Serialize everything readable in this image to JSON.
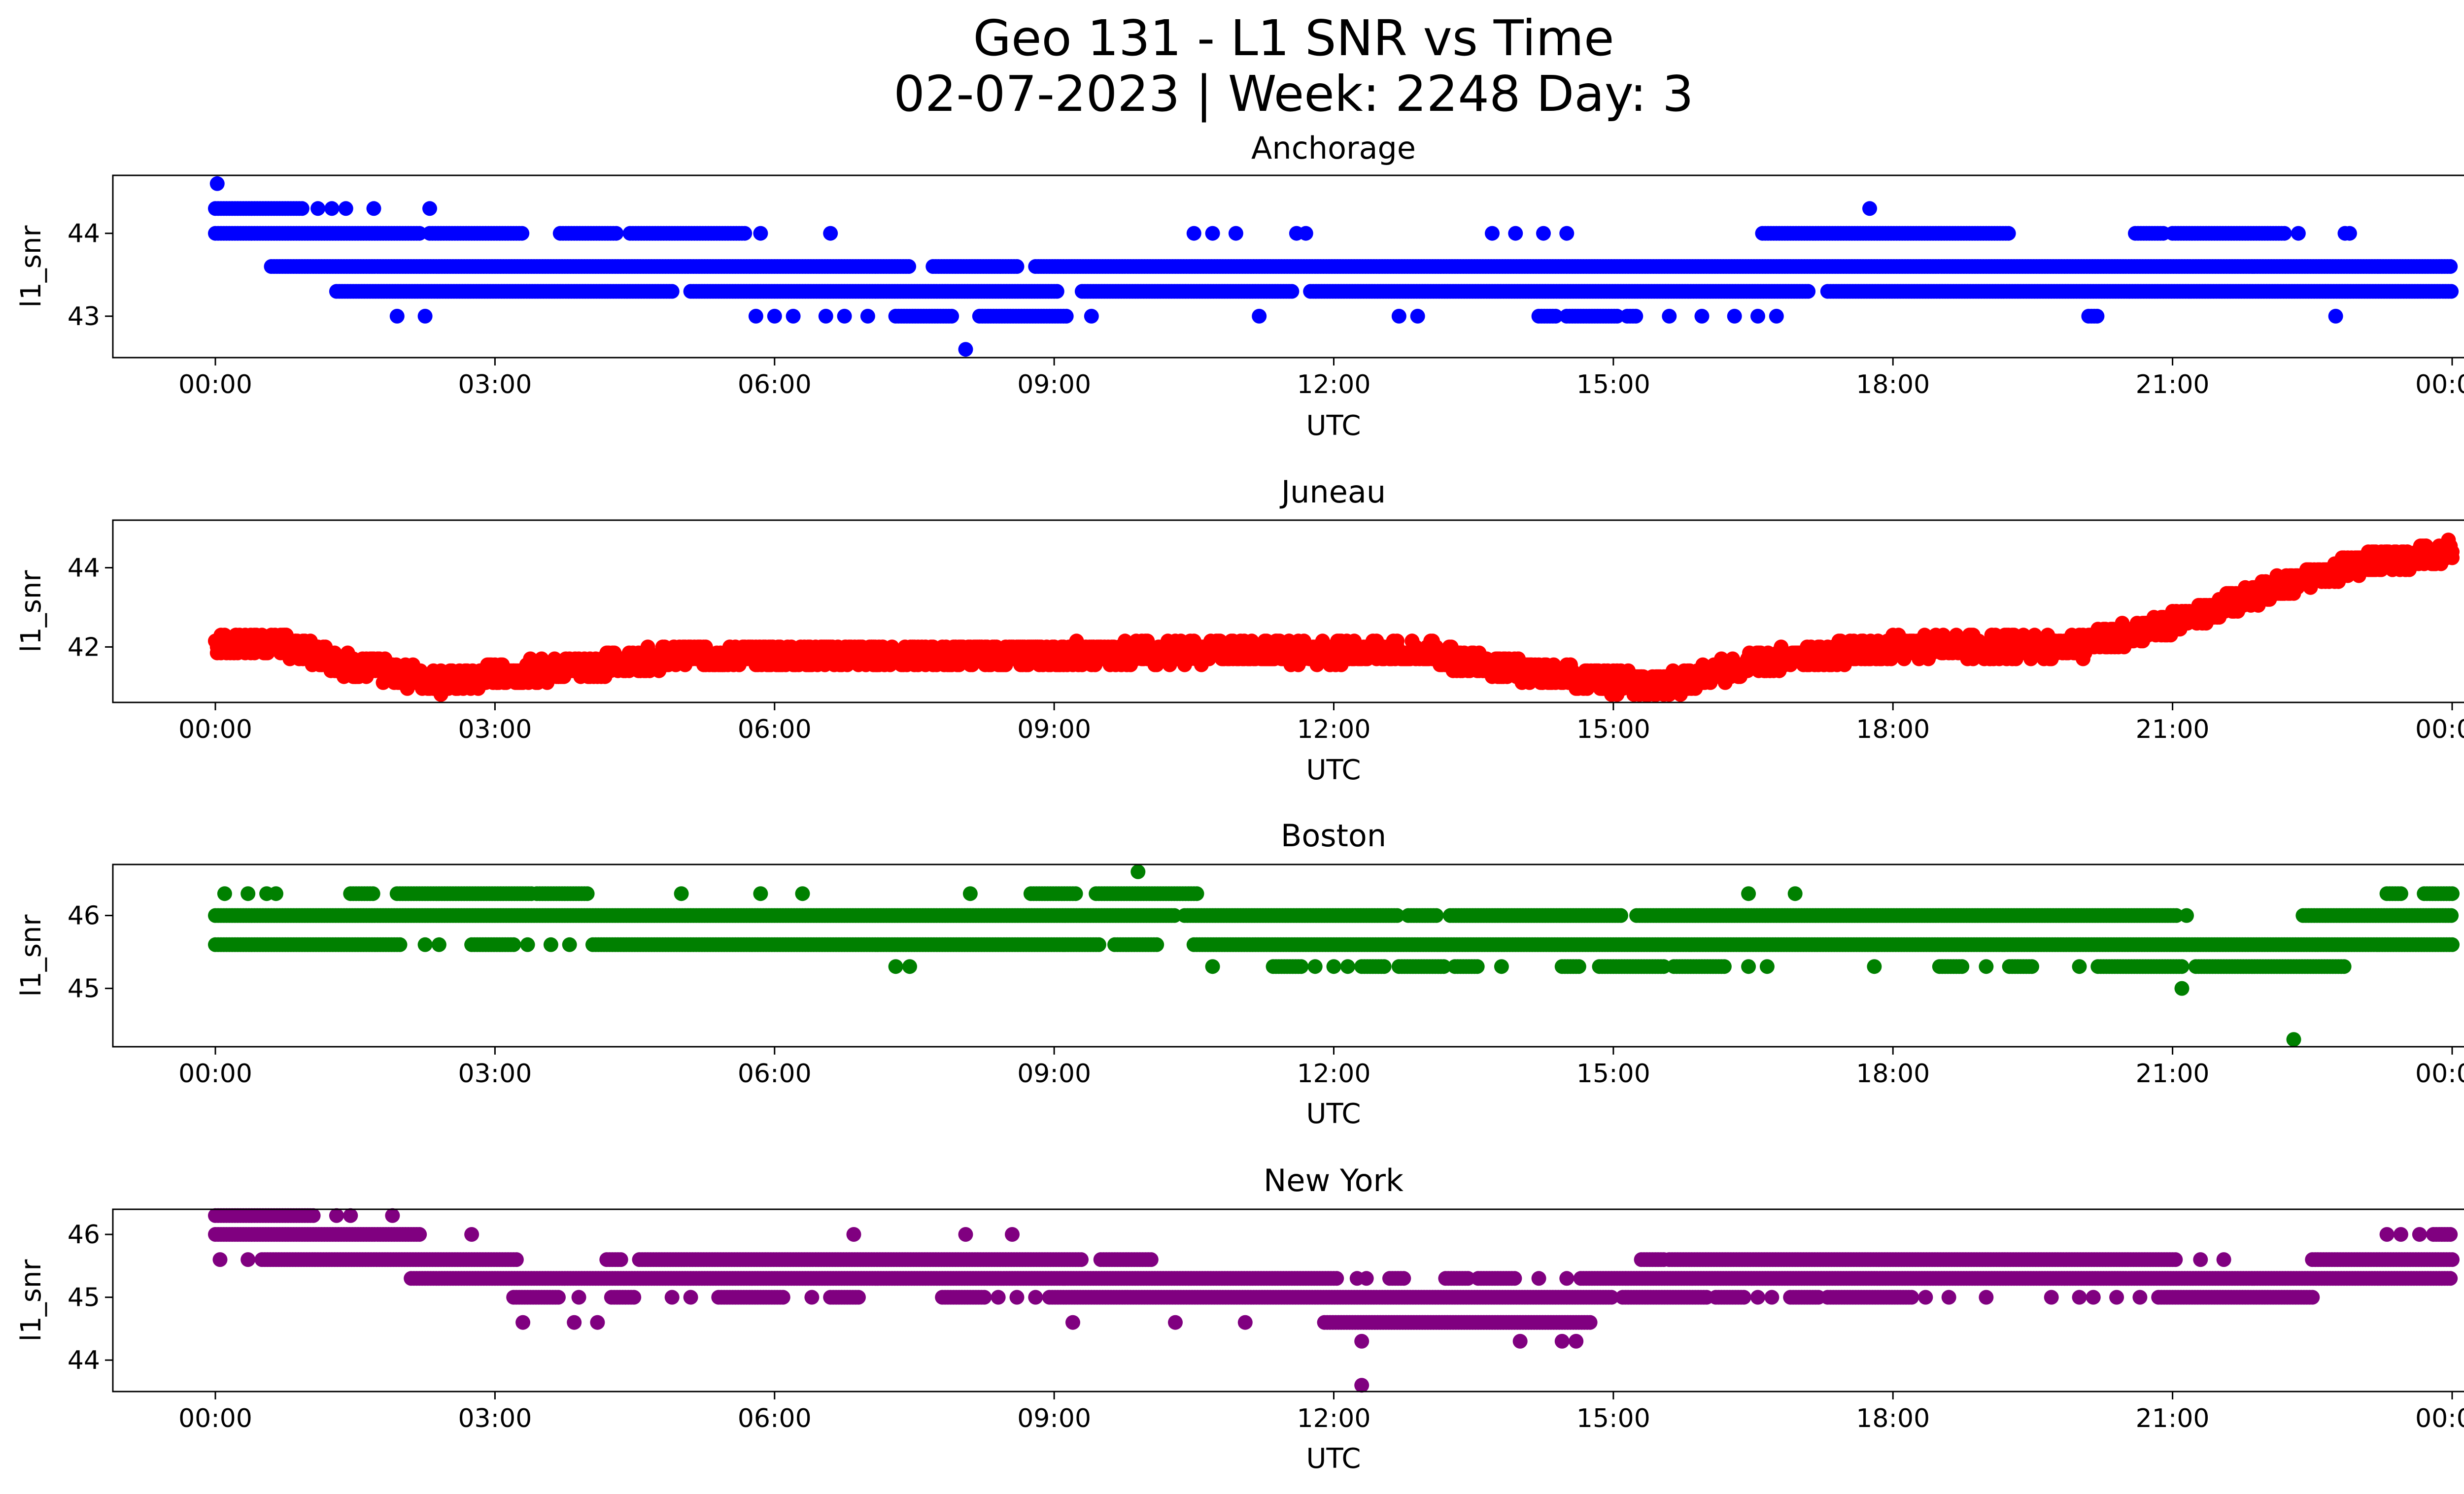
{
  "figure": {
    "title_line1": "Geo 131 - L1 SNR vs Time",
    "title_line2": "02-07-2023 | Week: 2248 Day: 3"
  },
  "chart_data": [
    {
      "type": "scatter",
      "title": "Anchorage",
      "xlabel": "UTC",
      "ylabel": "l1_snr",
      "color": "#0000ff",
      "xlim": [
        -1.1,
        25.1
      ],
      "ylim": [
        42.5,
        44.7
      ],
      "xticks": [
        "00:00",
        "03:00",
        "06:00",
        "09:00",
        "12:00",
        "15:00",
        "18:00",
        "21:00",
        "00:00"
      ],
      "yticks": [
        43,
        44
      ],
      "series": [
        {
          "values": [
            {
              "y": 44.6,
              "x": [
                0.02
              ]
            },
            {
              "y": 44.3,
              "x": [
                [
                  0,
                  0.95
                ],
                1.1,
                1.25,
                1.4,
                1.7,
                2.3,
                17.75
              ]
            },
            {
              "y": 44.0,
              "x": [
                [
                  0,
                  2.2
                ],
                [
                  2.3,
                  3.3
                ],
                [
                  3.7,
                  4.3
                ],
                [
                  4.45,
                  5.7
                ],
                5.85,
                6.6,
                10.5,
                10.7,
                10.95,
                11.6,
                11.7,
                13.7,
                13.95,
                14.25,
                14.5,
                [
                  16.6,
                  19.25
                ],
                [
                  20.6,
                  20.9
                ],
                [
                  21,
                  22.2
                ],
                22.35,
                22.85,
                22.9
              ]
            },
            {
              "y": 43.6,
              "x": [
                [
                  0.6,
                  7.45
                ],
                [
                  7.7,
                  8.6
                ],
                [
                  8.8,
                  24
                ]
              ]
            },
            {
              "y": 43.3,
              "x": [
                [
                  1.3,
                  4.9
                ],
                [
                  5.1,
                  9.05
                ],
                [
                  9.3,
                  11.55
                ],
                [
                  11.75,
                  17.1
                ],
                [
                  17.3,
                  24
                ]
              ]
            },
            {
              "y": 43.0,
              "x": [
                1.95,
                2.25,
                5.8,
                6.0,
                6.2,
                6.55,
                6.75,
                7.0,
                [
                  7.3,
                  7.9
                ],
                [
                  8.2,
                  9.15
                ],
                9.4,
                11.2,
                12.7,
                12.9,
                [
                  14.2,
                  14.4
                ],
                [
                  14.5,
                  15.05
                ],
                [
                  15.15,
                  15.25
                ],
                15.6,
                15.95,
                16.3,
                16.55,
                16.75,
                [
                  20.1,
                  20.2
                ],
                22.75
              ]
            },
            {
              "y": 42.6,
              "x": [
                8.05
              ]
            }
          ]
        }
      ]
    },
    {
      "type": "scatter",
      "title": "Juneau",
      "xlabel": "UTC",
      "ylabel": "l1_snr",
      "color": "#ff0000",
      "xlim": [
        -1.1,
        25.1
      ],
      "ylim": [
        40.6,
        45.2
      ],
      "xticks": [
        "00:00",
        "03:00",
        "06:00",
        "09:00",
        "12:00",
        "15:00",
        "18:00",
        "21:00",
        "00:00"
      ],
      "yticks": [
        42,
        44
      ],
      "trend": [
        [
          0,
          42.1
        ],
        [
          0.7,
          42.1
        ],
        [
          1.5,
          41.5
        ],
        [
          2.5,
          41.1
        ],
        [
          3,
          41.3
        ],
        [
          4,
          41.5
        ],
        [
          5,
          41.8
        ],
        [
          6,
          41.8
        ],
        [
          9,
          41.8
        ],
        [
          11,
          41.9
        ],
        [
          13,
          41.85
        ],
        [
          14,
          41.4
        ],
        [
          15.5,
          41
        ],
        [
          16.5,
          41.6
        ],
        [
          18,
          42.0
        ],
        [
          20,
          42.0
        ],
        [
          21,
          42.6
        ],
        [
          22,
          43.4
        ],
        [
          23,
          44.1
        ],
        [
          24,
          44.4
        ]
      ],
      "series": [
        {
          "values": []
        }
      ]
    },
    {
      "type": "scatter",
      "title": "Boston",
      "xlabel": "UTC",
      "ylabel": "l1_snr",
      "color": "#008000",
      "xlim": [
        -1.1,
        25.1
      ],
      "ylim": [
        44.2,
        46.7
      ],
      "xticks": [
        "00:00",
        "03:00",
        "06:00",
        "09:00",
        "12:00",
        "15:00",
        "18:00",
        "21:00",
        "00:00"
      ],
      "yticks": [
        45,
        46
      ],
      "series": [
        {
          "values": [
            {
              "y": 46.6,
              "x": [
                9.9
              ]
            },
            {
              "y": 46.3,
              "x": [
                0.1,
                0.35,
                0.55,
                0.65,
                [
                  1.45,
                  1.7
                ],
                [
                  1.95,
                  3.4
                ],
                [
                  3.45,
                  4.0
                ],
                5.0,
                5.85,
                6.3,
                8.1,
                [
                  8.75,
                  9.25
                ],
                [
                  9.45,
                  10.55
                ],
                16.45,
                16.95,
                [
                  23.3,
                  23.45
                ],
                [
                  23.7,
                  24
                ]
              ]
            },
            {
              "y": 46.0,
              "x": [
                [
                  0,
                  10.3
                ],
                [
                  10.4,
                  12.7
                ],
                [
                  12.8,
                  13.1
                ],
                [
                  13.25,
                  15.1
                ],
                [
                  15.25,
                  21.05
                ],
                21.15,
                [
                  22.4,
                  24
                ]
              ]
            },
            {
              "y": 45.6,
              "x": [
                [
                  0,
                  2.0
                ],
                2.25,
                2.4,
                [
                  2.75,
                  3.2
                ],
                3.35,
                3.6,
                3.8,
                [
                  4.05,
                  9.5
                ],
                [
                  9.65,
                  10.1
                ],
                [
                  10.5,
                  24
                ]
              ]
            },
            {
              "y": 45.3,
              "x": [
                7.3,
                7.45,
                10.7,
                [
                  11.35,
                  11.65
                ],
                11.8,
                12.0,
                12.15,
                [
                  12.3,
                  12.55
                ],
                [
                  12.7,
                  13.2
                ],
                [
                  13.3,
                  13.55
                ],
                13.8,
                [
                  14.45,
                  14.65
                ],
                [
                  14.85,
                  15.55
                ],
                [
                  15.65,
                  16.2
                ],
                16.45,
                16.65,
                17.8,
                [
                  18.5,
                  18.75
                ],
                19.0,
                [
                  19.25,
                  19.5
                ],
                20.0,
                [
                  20.2,
                  21.1
                ],
                [
                  21.25,
                  22.85
                ]
              ]
            },
            {
              "y": 45.0,
              "x": [
                21.1
              ]
            },
            {
              "y": 44.3,
              "x": [
                22.3
              ]
            }
          ]
        }
      ]
    },
    {
      "type": "scatter",
      "title": "New York",
      "xlabel": "UTC",
      "ylabel": "l1_snr",
      "color": "#800080",
      "xlim": [
        -1.1,
        25.1
      ],
      "ylim": [
        43.5,
        46.4
      ],
      "xticks": [
        "00:00",
        "03:00",
        "06:00",
        "09:00",
        "12:00",
        "15:00",
        "18:00",
        "21:00",
        "00:00"
      ],
      "yticks": [
        44,
        45,
        46
      ],
      "series": [
        {
          "values": [
            {
              "y": 46.3,
              "x": [
                [
                  0,
                  1.05
                ],
                1.3,
                1.45,
                1.9
              ]
            },
            {
              "y": 46.0,
              "x": [
                [
                  0,
                  2.2
                ],
                2.75,
                6.85,
                8.05,
                8.55,
                23.3,
                23.45,
                23.65,
                [
                  23.8,
                  24
                ]
              ]
            },
            {
              "y": 45.6,
              "x": [
                0.05,
                0.35,
                [
                  0.5,
                  3.25
                ],
                [
                  4.2,
                  4.35
                ],
                [
                  4.55,
                  9.3
                ],
                [
                  9.5,
                  10.05
                ],
                [
                  15.3,
                  15.55
                ],
                [
                  15.6,
                  21.05
                ],
                21.3,
                21.55,
                [
                  22.5,
                  24
                ]
              ]
            },
            {
              "y": 45.3,
              "x": [
                [
                  2.1,
                  12.05
                ],
                12.25,
                12.35,
                [
                  12.6,
                  12.75
                ],
                [
                  13.2,
                  13.45
                ],
                [
                  13.55,
                  13.95
                ],
                14.2,
                14.5,
                [
                  14.65,
                  24
                ]
              ]
            },
            {
              "y": 45.0,
              "x": [
                [
                  3.2,
                  3.7
                ],
                3.9,
                [
                  4.25,
                  4.5
                ],
                4.9,
                5.1,
                [
                  5.4,
                  6.1
                ],
                6.4,
                [
                  6.6,
                  6.9
                ],
                [
                  7.8,
                  8.25
                ],
                8.4,
                8.6,
                8.8,
                [
                  8.95,
                  15.0
                ],
                [
                  15.1,
                  16.0
                ],
                [
                  16.1,
                  16.4
                ],
                16.55,
                16.7,
                [
                  16.9,
                  17.2
                ],
                [
                  17.3,
                  18.2
                ],
                18.35,
                18.6,
                19.0,
                19.7,
                20.0,
                20.15,
                20.4,
                20.65,
                [
                  20.85,
                  22.5
                ]
              ]
            },
            {
              "y": 44.6,
              "x": [
                3.3,
                3.85,
                4.1,
                9.2,
                10.3,
                11.05,
                [
                  11.9,
                  14.75
                ]
              ]
            },
            {
              "y": 44.3,
              "x": [
                12.3,
                14.0,
                14.45,
                14.6
              ]
            },
            {
              "y": 43.6,
              "x": [
                12.3
              ]
            }
          ]
        }
      ]
    }
  ]
}
